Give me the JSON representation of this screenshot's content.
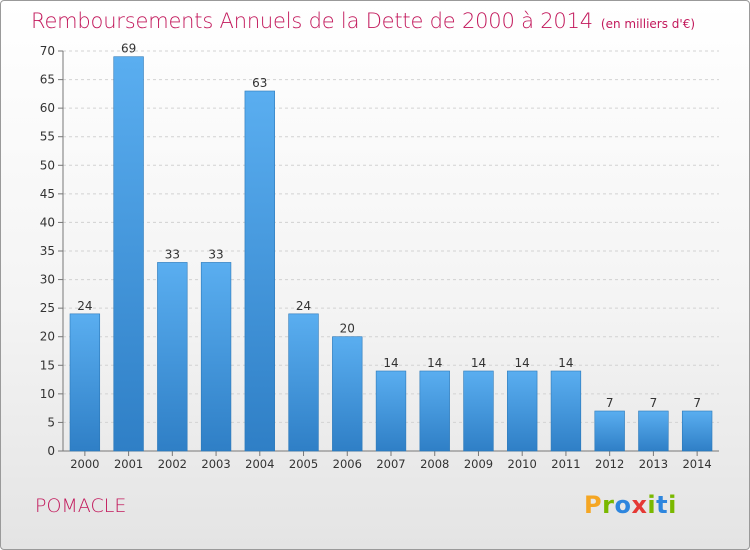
{
  "chart_data": {
    "type": "bar",
    "title": "Remboursements Annuels de la Dette de 2000 à 2014",
    "unit": "(en milliers d'€)",
    "categories": [
      "2000",
      "2001",
      "2002",
      "2003",
      "2004",
      "2005",
      "2006",
      "2007",
      "2008",
      "2009",
      "2010",
      "2011",
      "2012",
      "2013",
      "2014"
    ],
    "values": [
      24,
      69,
      33,
      33,
      63,
      24,
      20,
      14,
      14,
      14,
      14,
      14,
      7,
      7,
      7
    ],
    "ylim": [
      0,
      70
    ],
    "yticks": [
      0,
      5,
      10,
      15,
      20,
      25,
      30,
      35,
      40,
      45,
      50,
      55,
      60,
      65,
      70
    ],
    "grid": true,
    "data_labels": true,
    "colors": {
      "bar": "#4c9fe0",
      "bar_dark": "#2e7fc4",
      "title": "#c2185b"
    }
  },
  "place": "POMACLE",
  "brand": {
    "letters": [
      "P",
      "r",
      "o",
      "x",
      "i",
      "t",
      "i"
    ],
    "colors": [
      "#f5a623",
      "#7ab800",
      "#2e86de",
      "#e53935",
      "#7ab800",
      "#2e86de",
      "#7ab800"
    ]
  }
}
